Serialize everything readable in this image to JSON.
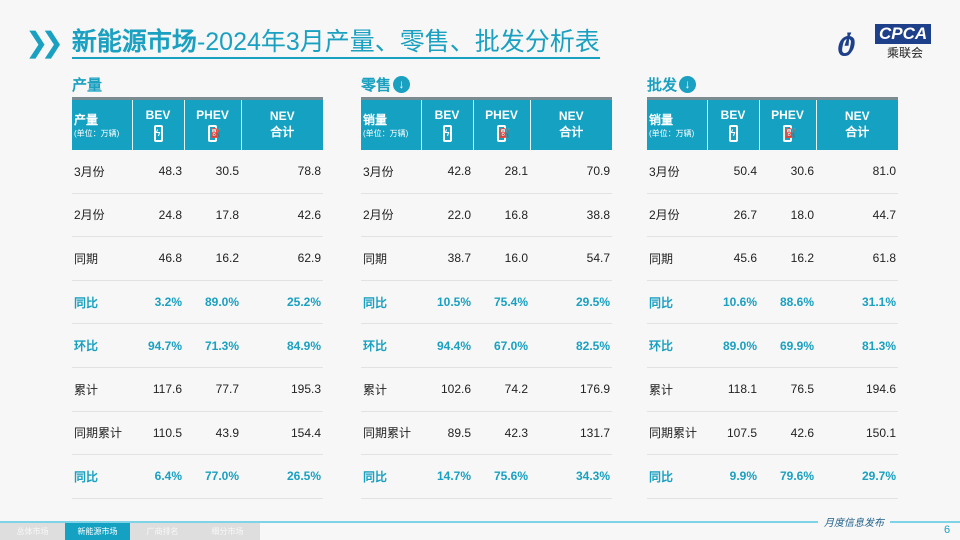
{
  "title": {
    "bold": "新能源市场",
    "rest": "-2024年3月产量、零售、批发分析表"
  },
  "logo": {
    "text": "CPCA",
    "cn": "乘联会"
  },
  "accent": "#15a2c2",
  "headers": {
    "bev": "BEV",
    "phev": "PHEV",
    "nev": "NEV",
    "nev2": "合计",
    "unit": "(单位：万辆)"
  },
  "tables": [
    {
      "section": "产量",
      "label": "产量",
      "download": false,
      "rows": [
        [
          "3月份",
          "48.3",
          "30.5",
          "78.8"
        ],
        [
          "2月份",
          "24.8",
          "17.8",
          "42.6"
        ],
        [
          "同期",
          "46.8",
          "16.2",
          "62.9"
        ],
        [
          "同比",
          "3.2%",
          "89.0%",
          "25.2%"
        ],
        [
          "环比",
          "94.7%",
          "71.3%",
          "84.9%"
        ],
        [
          "累计",
          "117.6",
          "77.7",
          "195.3"
        ],
        [
          "同期累计",
          "110.5",
          "43.9",
          "154.4"
        ],
        [
          "同比",
          "6.4%",
          "77.0%",
          "26.5%"
        ]
      ]
    },
    {
      "section": "零售",
      "label": "销量",
      "download": true,
      "rows": [
        [
          "3月份",
          "42.8",
          "28.1",
          "70.9"
        ],
        [
          "2月份",
          "22.0",
          "16.8",
          "38.8"
        ],
        [
          "同期",
          "38.7",
          "16.0",
          "54.7"
        ],
        [
          "同比",
          "10.5%",
          "75.4%",
          "29.5%"
        ],
        [
          "环比",
          "94.4%",
          "67.0%",
          "82.5%"
        ],
        [
          "累计",
          "102.6",
          "74.2",
          "176.9"
        ],
        [
          "同期累计",
          "89.5",
          "42.3",
          "131.7"
        ],
        [
          "同比",
          "14.7%",
          "75.6%",
          "34.3%"
        ]
      ]
    },
    {
      "section": "批发",
      "label": "销量",
      "download": true,
      "rows": [
        [
          "3月份",
          "50.4",
          "30.6",
          "81.0"
        ],
        [
          "2月份",
          "26.7",
          "18.0",
          "44.7"
        ],
        [
          "同期",
          "45.6",
          "16.2",
          "61.8"
        ],
        [
          "同比",
          "10.6%",
          "88.6%",
          "31.1%"
        ],
        [
          "环比",
          "89.0%",
          "69.9%",
          "81.3%"
        ],
        [
          "累计",
          "118.1",
          "76.5",
          "194.6"
        ],
        [
          "同期累计",
          "107.5",
          "42.6",
          "150.1"
        ],
        [
          "同比",
          "9.9%",
          "79.6%",
          "29.7%"
        ]
      ]
    }
  ],
  "footer": {
    "tabs": [
      "总体市场",
      "新能源市场",
      "厂商排名",
      "细分市场"
    ],
    "active": 1,
    "monthly": "月度信息发布",
    "page": "6"
  }
}
